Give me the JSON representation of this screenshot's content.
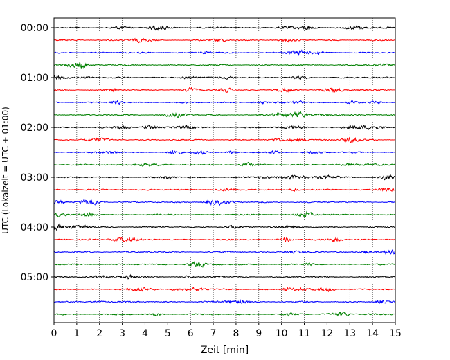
{
  "chart_data": {
    "type": "line",
    "title": "",
    "xlabel": "Zeit  [min]",
    "ylabel": "UTC (Lokalzeit = UTC + 01:00)",
    "xlim": [
      0,
      15
    ],
    "x_ticks": [
      "0",
      "1",
      "2",
      "3",
      "4",
      "5",
      "6",
      "7",
      "8",
      "9",
      "10",
      "11",
      "12",
      "13",
      "14",
      "15"
    ],
    "y_tick_labels": [
      "00:00",
      "01:00",
      "02:00",
      "03:00",
      "04:00",
      "05:00"
    ],
    "grid": "vertical dotted",
    "trace_interval_min": 15,
    "trace_count": 24,
    "trace_colors": [
      "#000000",
      "#ff0000",
      "#0000ff",
      "#008000"
    ]
  }
}
